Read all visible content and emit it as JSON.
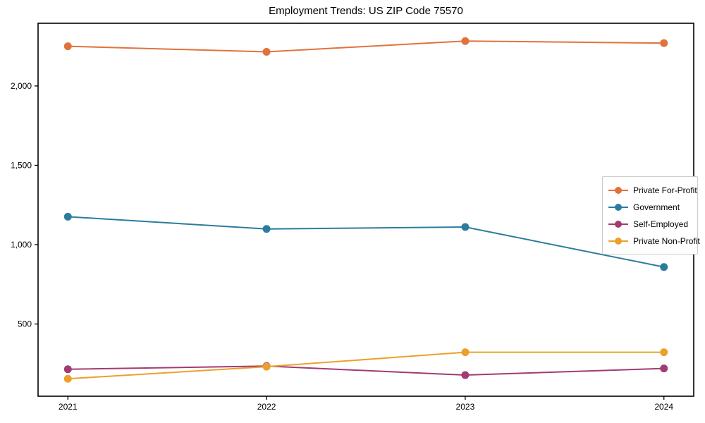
{
  "chart_data": {
    "type": "line",
    "title": "Employment Trends: US ZIP Code 75570",
    "categories": [
      "2021",
      "2022",
      "2023",
      "2024"
    ],
    "x": [
      2021,
      2022,
      2023,
      2024
    ],
    "series": [
      {
        "name": "Private For-Profit",
        "color": "#e2723c",
        "values": [
          2250,
          2215,
          2283,
          2270
        ]
      },
      {
        "name": "Government",
        "color": "#2b7c9e",
        "values": [
          1176,
          1099,
          1111,
          859
        ]
      },
      {
        "name": "Self-Employed",
        "color": "#a23b72",
        "values": [
          215,
          235,
          178,
          220
        ]
      },
      {
        "name": "Private Non-Profit",
        "color": "#eca02c",
        "values": [
          155,
          231,
          322,
          322
        ]
      }
    ],
    "xlabel": "",
    "ylabel": "",
    "xlim": [
      2020.85,
      2024.15
    ],
    "ylim": [
      45,
      2395
    ],
    "yticks": [
      500,
      1000,
      1500,
      2000
    ],
    "ytick_labels": [
      "500",
      "1,000",
      "1,500",
      "2,000"
    ],
    "grid": false,
    "legend_position": "center-right",
    "marker": "circle"
  }
}
